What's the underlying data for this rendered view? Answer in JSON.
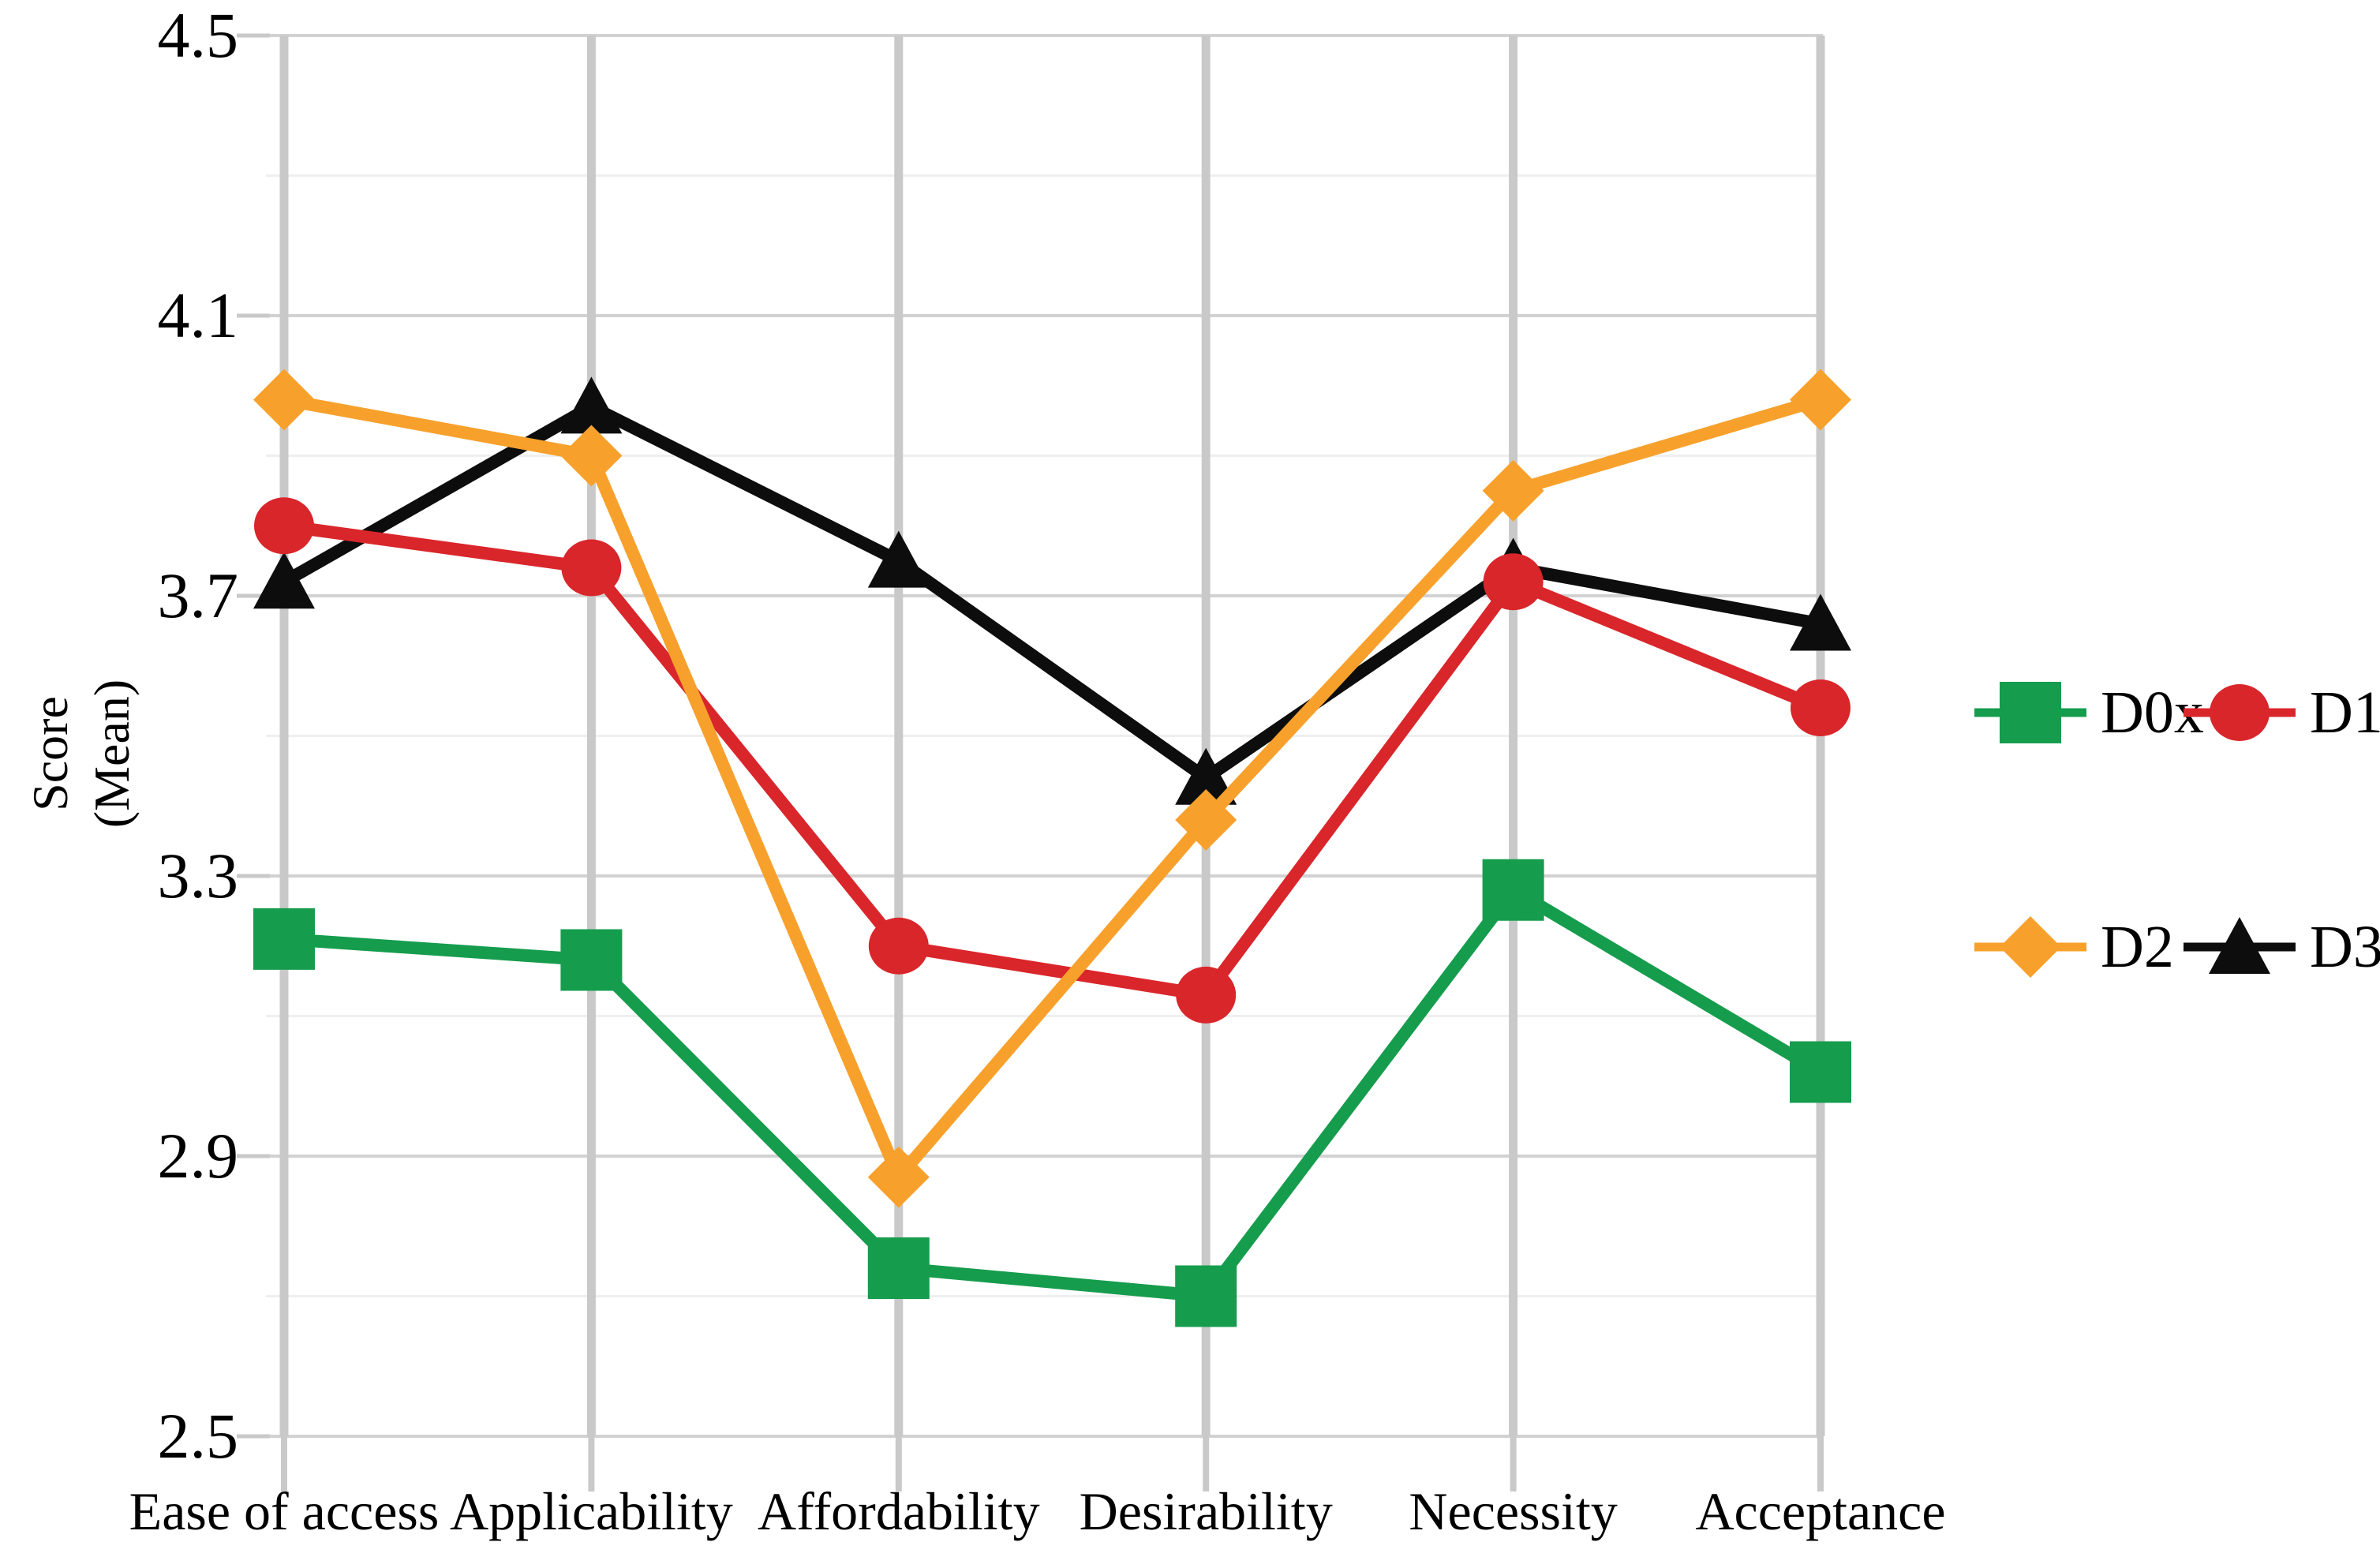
{
  "chart_data": {
    "type": "line",
    "title": "",
    "categories": [
      "Ease of access",
      "Applicability",
      "Affordability",
      "Desirability",
      "Necessity",
      "Acceptance"
    ],
    "series": [
      {
        "name": "D0x",
        "marker": "square",
        "color": "#169C4D",
        "values": [
          3.21,
          3.18,
          2.74,
          2.7,
          3.28,
          3.02
        ]
      },
      {
        "name": "D1",
        "marker": "circle",
        "color": "#D9262B",
        "values": [
          3.8,
          3.74,
          3.2,
          3.13,
          3.72,
          3.54
        ]
      },
      {
        "name": "D2",
        "marker": "diamond",
        "color": "#F7A12C",
        "values": [
          3.98,
          3.9,
          2.87,
          3.38,
          3.85,
          3.98
        ]
      },
      {
        "name": "D3",
        "marker": "triangle",
        "color": "#0D0D0D",
        "values": [
          3.72,
          3.97,
          3.75,
          3.44,
          3.74,
          3.66
        ]
      }
    ],
    "draw_order": [
      3,
      0,
      1,
      2
    ],
    "xlabel": "",
    "ylabel": "Score (Mean)",
    "ylabel_line1": "Score",
    "ylabel_line2": "(Mean)",
    "ylim": [
      2.5,
      4.5
    ],
    "yticks": [
      4.5,
      4.1,
      3.7,
      3.3,
      2.9,
      2.5
    ],
    "ytick_labels": [
      "4.5",
      "4.1",
      "3.7",
      "3.3",
      "2.9",
      "2.5"
    ],
    "minor_gridlines": [
      4.3,
      3.9,
      3.5,
      3.1,
      2.7
    ],
    "grid": true,
    "legend_position": "right",
    "colors": {
      "major_gridline": "#D2D2D2",
      "minor_gridline": "#EFEFEF",
      "category_gridline": "#C9C9C9",
      "tick": "#C9C9C9",
      "text": "#000000"
    }
  },
  "legend": {
    "items": [
      {
        "label": "D0x"
      },
      {
        "label": "D1"
      },
      {
        "label": "D2"
      },
      {
        "label": "D3"
      }
    ]
  }
}
